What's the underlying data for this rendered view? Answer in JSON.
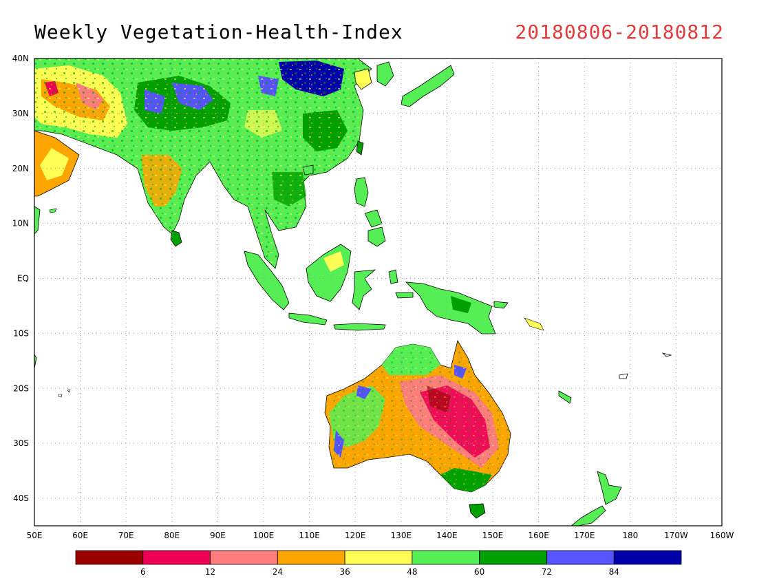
{
  "header": {
    "title": "Weekly Vegetation-Health-Index",
    "date_range": "20180806-20180812",
    "date_color": "#e03c3c"
  },
  "map": {
    "lat_labels": [
      "40N",
      "30N",
      "20N",
      "10N",
      "EQ",
      "10S",
      "20S",
      "30S",
      "40S"
    ],
    "lon_labels": [
      "50E",
      "60E",
      "70E",
      "80E",
      "90E",
      "100E",
      "110E",
      "120E",
      "130E",
      "140E",
      "150E",
      "160E",
      "170E",
      "180",
      "170W",
      "160W"
    ],
    "lat_range": [
      -45,
      40
    ],
    "lon_range": [
      50,
      200
    ],
    "grid": true
  },
  "colorbar": {
    "colors": [
      "#9a0000",
      "#ee0055",
      "#ff7d7d",
      "#ffa500",
      "#ffff55",
      "#55ee55",
      "#00a000",
      "#5555ff",
      "#0000aa"
    ],
    "labels": [
      "6",
      "12",
      "24",
      "36",
      "48",
      "60",
      "72",
      "84"
    ]
  }
}
